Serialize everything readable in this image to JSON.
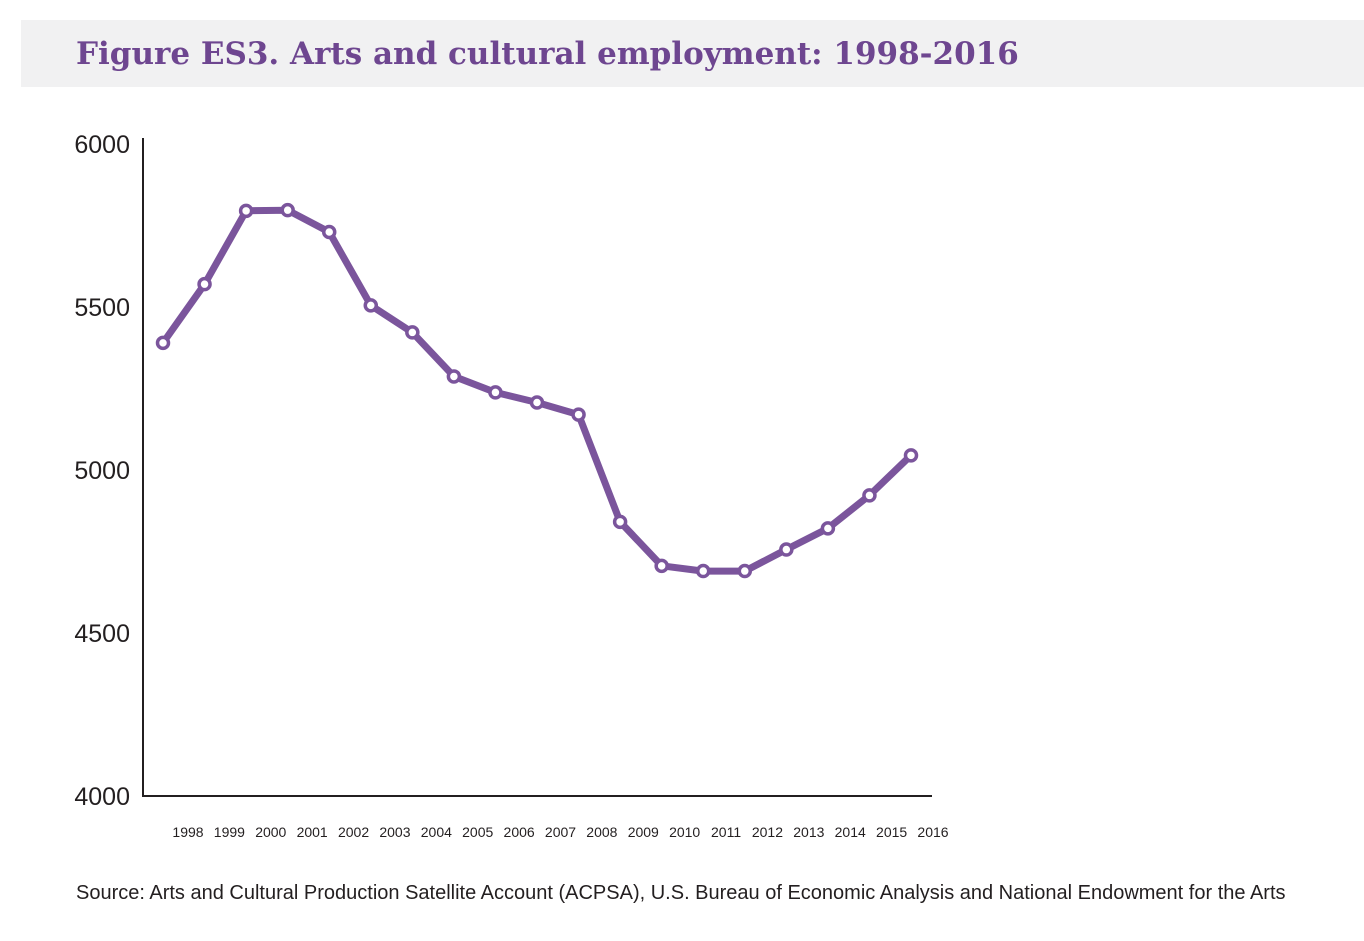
{
  "title": "Figure ES3. Arts and cultural employment: 1998-2016",
  "source": "Source: Arts and Cultural Production Satellite Account (ACPSA), U.S. Bureau of Economic Analysis and National Endowment for the Arts",
  "colors": {
    "line": "#7b559c",
    "title": "#6e4690",
    "title_bg": "#f1f1f2",
    "axis": "#231f20"
  },
  "chart_data": {
    "type": "line",
    "title": "Figure ES3. Arts and cultural employment: 1998-2016",
    "xlabel": "",
    "ylabel": "",
    "ylim": [
      4000,
      6000
    ],
    "yticks": [
      4000,
      4500,
      5000,
      5500,
      6000
    ],
    "grid": false,
    "categories": [
      "1998",
      "1999",
      "2000",
      "2001",
      "2002",
      "2003",
      "2004",
      "2005",
      "2006",
      "2007",
      "2008",
      "2009",
      "2010",
      "2011",
      "2012",
      "2013",
      "2014",
      "2015",
      "2016"
    ],
    "series": [
      {
        "name": "Arts and cultural employment",
        "values": [
          5390,
          5570,
          5795,
          5797,
          5730,
          5505,
          5422,
          5287,
          5238,
          5207,
          5170,
          4841,
          4706,
          4690,
          4690,
          4756,
          4821,
          4922,
          5045
        ]
      }
    ]
  }
}
